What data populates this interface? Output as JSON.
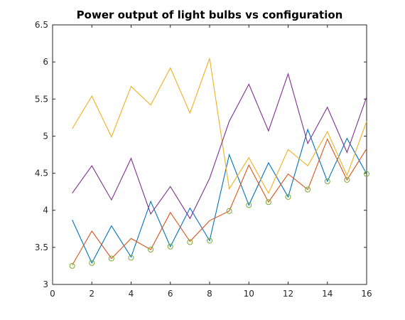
{
  "chart_data": {
    "type": "line",
    "title": "Power output of light bulbs vs configuration",
    "xlabel": "",
    "ylabel": "",
    "xlim": [
      0,
      16
    ],
    "ylim": [
      3,
      6.5
    ],
    "xticks": [
      0,
      2,
      4,
      6,
      8,
      10,
      12,
      14,
      16
    ],
    "yticks": [
      3,
      3.5,
      4,
      4.5,
      5,
      5.5,
      6,
      6.5
    ],
    "grid": false,
    "x": [
      1,
      2,
      3,
      4,
      5,
      6,
      7,
      8,
      9,
      10,
      11,
      12,
      13,
      14,
      15,
      16
    ],
    "series": [
      {
        "color": "#0072BD",
        "marker": "none",
        "values": [
          3.87,
          3.29,
          3.79,
          3.37,
          4.12,
          3.51,
          4.03,
          3.59,
          4.75,
          4.07,
          4.64,
          4.18,
          5.09,
          4.39,
          4.97,
          4.49
        ]
      },
      {
        "color": "#D95319",
        "marker": "none",
        "values": [
          3.26,
          3.72,
          3.35,
          3.62,
          3.47,
          3.97,
          3.58,
          3.86,
          3.99,
          4.61,
          4.11,
          4.49,
          4.28,
          4.96,
          4.41,
          4.83
        ]
      },
      {
        "color": "#EDB120",
        "marker": "none",
        "values": [
          5.1,
          5.54,
          4.99,
          5.67,
          5.42,
          5.92,
          5.31,
          6.05,
          4.29,
          4.71,
          4.23,
          4.82,
          4.6,
          5.06,
          4.47,
          5.2
        ]
      },
      {
        "color": "#7E2F8E",
        "marker": "none",
        "values": [
          4.23,
          4.6,
          4.14,
          4.7,
          3.95,
          4.32,
          3.89,
          4.43,
          5.2,
          5.7,
          5.07,
          5.84,
          4.9,
          5.39,
          4.78,
          5.53
        ]
      },
      {
        "color": "#77AC30",
        "marker": "circle",
        "line": false,
        "values": [
          3.25,
          3.29,
          3.35,
          3.36,
          3.47,
          3.51,
          3.57,
          3.59,
          3.99,
          4.07,
          4.11,
          4.18,
          4.28,
          4.39,
          4.41,
          4.49
        ]
      }
    ]
  }
}
